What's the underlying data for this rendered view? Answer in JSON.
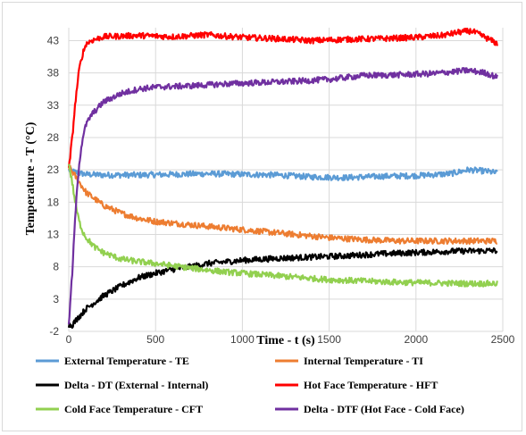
{
  "chart_data": {
    "type": "line",
    "xlabel": "Time - t (s)",
    "ylabel": "Temperature - T (°C)",
    "xlim": [
      0,
      2500
    ],
    "ylim": [
      -2,
      45
    ],
    "x_ticks": [
      "0",
      "500",
      "1000",
      "1500",
      "2000",
      "2500"
    ],
    "y_ticks": [
      "-2",
      "3",
      "8",
      "13",
      "18",
      "23",
      "28",
      "33",
      "38",
      "43"
    ],
    "grid": true,
    "legend_position": "bottom",
    "series": [
      {
        "name": "External Temperature - TE",
        "color": "#5B9BD5",
        "points": [
          [
            0,
            23
          ],
          [
            40,
            22.6
          ],
          [
            100,
            22.3
          ],
          [
            200,
            22.2
          ],
          [
            400,
            22.2
          ],
          [
            600,
            22.3
          ],
          [
            800,
            22.4
          ],
          [
            1000,
            22.3
          ],
          [
            1200,
            22.2
          ],
          [
            1400,
            21.9
          ],
          [
            1600,
            21.8
          ],
          [
            1800,
            22.0
          ],
          [
            2000,
            22.1
          ],
          [
            2200,
            22.4
          ],
          [
            2300,
            23.0
          ],
          [
            2400,
            22.8
          ],
          [
            2470,
            22.5
          ]
        ]
      },
      {
        "name": "Internal Temperature - TI",
        "color": "#ED7D31",
        "points": [
          [
            0,
            23.5
          ],
          [
            50,
            21.5
          ],
          [
            100,
            19.5
          ],
          [
            200,
            17.5
          ],
          [
            300,
            16.3
          ],
          [
            400,
            15.5
          ],
          [
            500,
            15.0
          ],
          [
            700,
            14.5
          ],
          [
            900,
            14.0
          ],
          [
            1100,
            13.5
          ],
          [
            1300,
            13.0
          ],
          [
            1500,
            12.5
          ],
          [
            1700,
            12.2
          ],
          [
            1900,
            12.0
          ],
          [
            2100,
            12.0
          ],
          [
            2300,
            12.0
          ],
          [
            2470,
            12.0
          ]
        ]
      },
      {
        "name": "Delta - DT (External - Internal)",
        "color": "#000000",
        "points": [
          [
            0,
            -1
          ],
          [
            20,
            -1.0
          ],
          [
            50,
            0.0
          ],
          [
            100,
            1.5
          ],
          [
            200,
            3.5
          ],
          [
            300,
            5.0
          ],
          [
            400,
            6.3
          ],
          [
            500,
            7.0
          ],
          [
            600,
            7.6
          ],
          [
            700,
            8.0
          ],
          [
            800,
            8.5
          ],
          [
            1000,
            9.0
          ],
          [
            1200,
            9.3
          ],
          [
            1400,
            9.5
          ],
          [
            1600,
            9.7
          ],
          [
            1800,
            10.0
          ],
          [
            2000,
            10.2
          ],
          [
            2200,
            10.4
          ],
          [
            2470,
            10.5
          ]
        ]
      },
      {
        "name": "Hot Face Temperature - HFT",
        "color": "#FF0000",
        "points": [
          [
            0,
            23
          ],
          [
            20,
            28
          ],
          [
            40,
            34
          ],
          [
            60,
            38.5
          ],
          [
            80,
            41
          ],
          [
            100,
            42.5
          ],
          [
            130,
            43
          ],
          [
            200,
            43.6
          ],
          [
            400,
            43.8
          ],
          [
            600,
            43.6
          ],
          [
            800,
            43.9
          ],
          [
            1000,
            43.5
          ],
          [
            1200,
            43.3
          ],
          [
            1400,
            43.0
          ],
          [
            1600,
            43.2
          ],
          [
            1800,
            43.3
          ],
          [
            2000,
            43.5
          ],
          [
            2150,
            43.8
          ],
          [
            2250,
            44.3
          ],
          [
            2320,
            44.5
          ],
          [
            2400,
            43.5
          ],
          [
            2470,
            42.5
          ]
        ]
      },
      {
        "name": "Cold Face Temperature - CFT",
        "color": "#92D050",
        "points": [
          [
            0,
            24
          ],
          [
            20,
            21
          ],
          [
            40,
            17.5
          ],
          [
            60,
            15
          ],
          [
            80,
            13.5
          ],
          [
            100,
            12.5
          ],
          [
            150,
            11
          ],
          [
            200,
            10.2
          ],
          [
            300,
            9.2
          ],
          [
            400,
            8.8
          ],
          [
            500,
            8.5
          ],
          [
            700,
            7.8
          ],
          [
            900,
            7.2
          ],
          [
            1100,
            6.8
          ],
          [
            1300,
            6.4
          ],
          [
            1500,
            6.0
          ],
          [
            1700,
            5.8
          ],
          [
            1900,
            5.6
          ],
          [
            2100,
            5.5
          ],
          [
            2300,
            5.4
          ],
          [
            2470,
            5.4
          ]
        ]
      },
      {
        "name": "Delta - DTF (Hot Face - Cold Face)",
        "color": "#7030A0",
        "points": [
          [
            0,
            -1
          ],
          [
            20,
            7
          ],
          [
            40,
            17
          ],
          [
            60,
            24
          ],
          [
            80,
            28
          ],
          [
            100,
            30
          ],
          [
            130,
            31.5
          ],
          [
            200,
            33.5
          ],
          [
            300,
            34.8
          ],
          [
            400,
            35.5
          ],
          [
            500,
            35.8
          ],
          [
            700,
            36.0
          ],
          [
            900,
            36.3
          ],
          [
            1100,
            36.5
          ],
          [
            1300,
            36.7
          ],
          [
            1500,
            37.0
          ],
          [
            1700,
            37.6
          ],
          [
            1900,
            37.7
          ],
          [
            2100,
            37.9
          ],
          [
            2300,
            38.4
          ],
          [
            2400,
            38.0
          ],
          [
            2470,
            37.3
          ]
        ]
      }
    ]
  }
}
